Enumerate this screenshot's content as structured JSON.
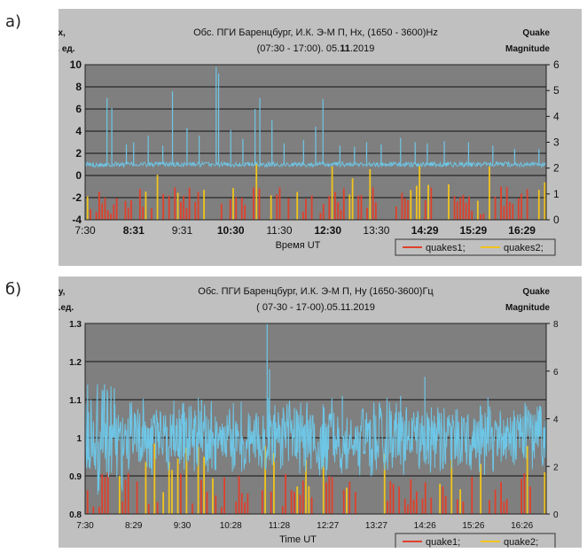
{
  "colors": {
    "frame": "#c0c0c0",
    "plot_bg": "#7f7f7f",
    "signal": "#6ec6e6",
    "quake1": "#e0412b",
    "quake2": "#f2c41c",
    "grid": "#111111"
  },
  "chart_data": [
    {
      "type": "line",
      "panel_label": "а)",
      "title_line1": "Обс. ПГИ Баренцбург, И.К. Э-М П, Нх, (1650 - 3600)Hz",
      "title_line2_prefix": "(07:30 - 17:00). 05.",
      "title_line2_bold": "11",
      "title_line2_suffix": ".2019",
      "ylabel_left_line1": "Нх,",
      "ylabel_left_line2": "отн. ед.",
      "ylabel_right_line1": "Quake",
      "ylabel_right_line2": "Magnitude",
      "xlabel": "Время UT",
      "x_tick_labels": [
        "7:30",
        "8:31",
        "9:31",
        "10:30",
        "11:30",
        "12:30",
        "13:30",
        "14:29",
        "15:29",
        "16:29"
      ],
      "x_tick_bold": [
        false,
        true,
        false,
        true,
        false,
        true,
        false,
        true,
        true,
        true
      ],
      "y_left_ticks": [
        "10",
        "8",
        "6",
        "4",
        "2",
        "0",
        "-2",
        "-4"
      ],
      "y_right_ticks": [
        "6",
        "5",
        "4",
        "3",
        "2",
        "1",
        "0"
      ],
      "ylim_left": [
        -4,
        10
      ],
      "ylim_right": [
        0,
        6
      ],
      "xlim_hours": [
        7.5,
        17.0
      ],
      "grid": true,
      "legend_position": "bottom-right",
      "series": [
        {
          "name": "quakes1",
          "color": "#e0412b"
        },
        {
          "name": "quakes2",
          "color": "#f2c41c"
        }
      ],
      "signal_baseline": 1.0,
      "spikes": [
        [
          7.95,
          7.0
        ],
        [
          8.05,
          6.1
        ],
        [
          8.35,
          2.8
        ],
        [
          8.5,
          3.0
        ],
        [
          8.8,
          3.6
        ],
        [
          9.1,
          2.7
        ],
        [
          9.3,
          7.6
        ],
        [
          9.6,
          4.3
        ],
        [
          9.85,
          3.6
        ],
        [
          10.2,
          9.8
        ],
        [
          10.25,
          9.2
        ],
        [
          10.5,
          4.1
        ],
        [
          10.75,
          3.3
        ],
        [
          11.0,
          6.0
        ],
        [
          11.1,
          7.0
        ],
        [
          11.35,
          5.0
        ],
        [
          11.6,
          2.9
        ],
        [
          12.0,
          3.2
        ],
        [
          12.25,
          4.4
        ],
        [
          12.4,
          6.9
        ],
        [
          12.75,
          2.7
        ],
        [
          13.05,
          2.6
        ],
        [
          13.3,
          3.0
        ],
        [
          13.6,
          2.8
        ],
        [
          14.0,
          3.4
        ],
        [
          14.3,
          3.0
        ],
        [
          14.55,
          2.9
        ],
        [
          14.9,
          3.1
        ],
        [
          15.4,
          3.0
        ],
        [
          15.9,
          2.7
        ],
        [
          16.35,
          2.4
        ],
        [
          16.85,
          2.4
        ]
      ]
    },
    {
      "type": "line",
      "panel_label": "б)",
      "title_line1": "Обс. ПГИ Баренцбург, И.К. Э-М П, Ну (1650-3600)Гц",
      "title_line2_prefix": "( 07-30 - 17-00).05.11.2019",
      "title_line2_bold": "",
      "title_line2_suffix": "",
      "ylabel_left_line1": "Ну,",
      "ylabel_left_line2": "отн.ед.",
      "ylabel_right_line1": "Quake",
      "ylabel_right_line2": "Magnitude",
      "xlabel": "Time UT",
      "x_tick_labels": [
        "7:30",
        "8:29",
        "9:30",
        "10:28",
        "11:28",
        "12:27",
        "13:27",
        "14:26",
        "15:26",
        "16:26"
      ],
      "x_tick_bold": [
        false,
        false,
        false,
        false,
        false,
        false,
        false,
        false,
        false,
        false
      ],
      "y_left_ticks": [
        "1.3",
        "1.2",
        "1.1",
        "1",
        "0.9",
        "0.8"
      ],
      "y_right_ticks": [
        "8",
        "6",
        "4",
        "2",
        "0"
      ],
      "ylim_left": [
        0.8,
        1.3
      ],
      "ylim_right": [
        0,
        8
      ],
      "xlim_hours": [
        7.5,
        17.0
      ],
      "grid": true,
      "legend_position": "bottom-right",
      "series": [
        {
          "name": "quake1",
          "color": "#e0412b"
        },
        {
          "name": "quake2",
          "color": "#f2c41c"
        }
      ],
      "signal_baseline": 1.0,
      "spikes": [
        [
          7.9,
          1.14
        ],
        [
          8.1,
          1.13
        ],
        [
          11.25,
          1.3
        ],
        [
          11.3,
          1.18
        ],
        [
          14.5,
          1.16
        ],
        [
          14.0,
          1.11
        ],
        [
          9.9,
          1.1
        ],
        [
          12.8,
          1.11
        ]
      ]
    }
  ]
}
